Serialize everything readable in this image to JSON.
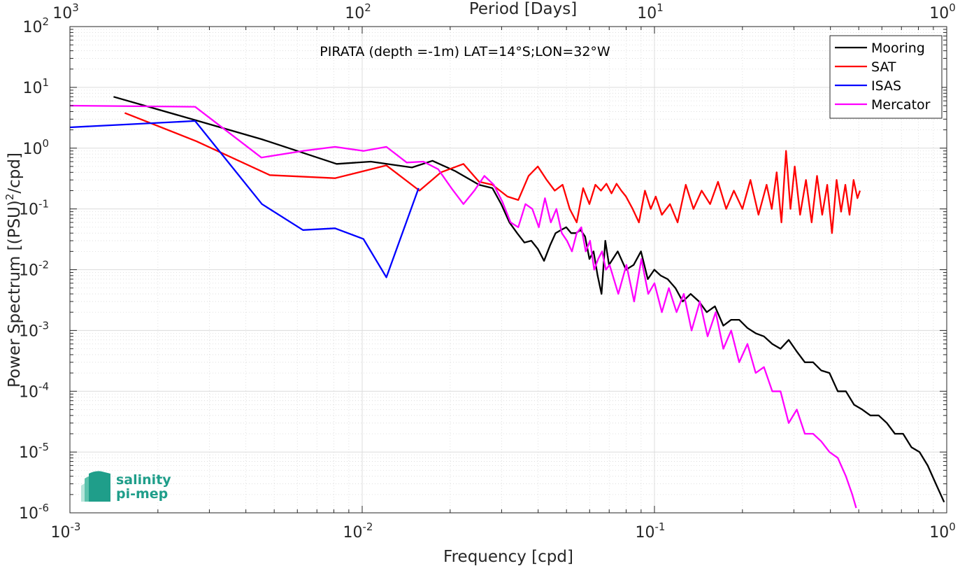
{
  "chart_data": {
    "type": "line",
    "title": "PIRATA (depth =-1m) LAT=14°S;LON=32°W",
    "xlabel": "Frequency [cpd]",
    "ylabel_main": "Power Spectrum [(PSU)",
    "ylabel_sup": "2",
    "ylabel_tail": "/cpd]",
    "x2label": "Period [Days]",
    "xscale": "log",
    "yscale": "log",
    "xlim": [
      0.001,
      1
    ],
    "ylim": [
      1e-06,
      100
    ],
    "grid": true,
    "legend_position": "top-right",
    "x_ticks": [
      {
        "base": "10",
        "exp": "-3"
      },
      {
        "base": "10",
        "exp": "-2"
      },
      {
        "base": "10",
        "exp": "-1"
      },
      {
        "base": "10",
        "exp": "0"
      }
    ],
    "x2_ticks": [
      {
        "base": "10",
        "exp": "3"
      },
      {
        "base": "10",
        "exp": "2"
      },
      {
        "base": "10",
        "exp": "1"
      },
      {
        "base": "10",
        "exp": "0"
      }
    ],
    "y_ticks": [
      {
        "base": "10",
        "exp": "-6"
      },
      {
        "base": "10",
        "exp": "-5"
      },
      {
        "base": "10",
        "exp": "-4"
      },
      {
        "base": "10",
        "exp": "-3"
      },
      {
        "base": "10",
        "exp": "-2"
      },
      {
        "base": "10",
        "exp": "-1"
      },
      {
        "base": "10",
        "exp": "0"
      },
      {
        "base": "10",
        "exp": "1"
      },
      {
        "base": "10",
        "exp": "2"
      }
    ],
    "series": [
      {
        "name": "Mooring",
        "color": "#000000",
        "x": [
          0.00141,
          0.00268,
          0.00454,
          0.00818,
          0.0107,
          0.0148,
          0.0174,
          0.0208,
          0.0251,
          0.0279,
          0.0299,
          0.0319,
          0.0339,
          0.0359,
          0.0379,
          0.0399,
          0.0419,
          0.0439,
          0.0459,
          0.0479,
          0.0499,
          0.0519,
          0.0539,
          0.0559,
          0.0579,
          0.0599,
          0.0619,
          0.0639,
          0.0659,
          0.0679,
          0.0699,
          0.0749,
          0.0799,
          0.0849,
          0.0899,
          0.0949,
          0.0999,
          0.105,
          0.111,
          0.118,
          0.125,
          0.133,
          0.142,
          0.151,
          0.161,
          0.172,
          0.183,
          0.195,
          0.208,
          0.222,
          0.237,
          0.253,
          0.27,
          0.288,
          0.307,
          0.327,
          0.349,
          0.372,
          0.397,
          0.424,
          0.452,
          0.482,
          0.514,
          0.548,
          0.585,
          0.624,
          0.665,
          0.709,
          0.757,
          0.807,
          0.861,
          0.918,
          0.98
        ],
        "values": [
          7,
          2.9,
          1.4,
          0.55,
          0.6,
          0.48,
          0.62,
          0.42,
          0.25,
          0.22,
          0.12,
          0.06,
          0.04,
          0.028,
          0.03,
          0.022,
          0.014,
          0.025,
          0.04,
          0.045,
          0.05,
          0.04,
          0.04,
          0.045,
          0.035,
          0.015,
          0.02,
          0.008,
          0.004,
          0.03,
          0.012,
          0.02,
          0.01,
          0.012,
          0.02,
          0.007,
          0.01,
          0.008,
          0.007,
          0.005,
          0.003,
          0.004,
          0.003,
          0.002,
          0.0025,
          0.0012,
          0.0015,
          0.0015,
          0.0011,
          0.0009,
          0.0008,
          0.0006,
          0.0005,
          0.0007,
          0.00045,
          0.0003,
          0.0003,
          0.00022,
          0.0002,
          0.0001,
          0.0001,
          6e-05,
          5e-05,
          4e-05,
          4e-05,
          3e-05,
          2e-05,
          2e-05,
          1.2e-05,
          1e-05,
          6e-06,
          3e-06,
          1.5e-06
        ]
      },
      {
        "name": "SAT",
        "color": "#ff0000",
        "x": [
          0.00154,
          0.00271,
          0.00483,
          0.00807,
          0.0121,
          0.0157,
          0.0186,
          0.0222,
          0.0251,
          0.0279,
          0.0314,
          0.0342,
          0.0371,
          0.0399,
          0.0428,
          0.0456,
          0.0485,
          0.0513,
          0.0542,
          0.057,
          0.0599,
          0.0628,
          0.0656,
          0.0685,
          0.0713,
          0.0742,
          0.077,
          0.0799,
          0.0842,
          0.0885,
          0.0928,
          0.0971,
          0.101,
          0.106,
          0.113,
          0.12,
          0.128,
          0.136,
          0.145,
          0.155,
          0.165,
          0.176,
          0.187,
          0.2,
          0.213,
          0.227,
          0.242,
          0.252,
          0.262,
          0.272,
          0.282,
          0.292,
          0.302,
          0.315,
          0.33,
          0.345,
          0.36,
          0.375,
          0.39,
          0.405,
          0.42,
          0.435,
          0.45,
          0.465,
          0.48,
          0.495,
          0.505
        ],
        "values": [
          3.8,
          1.3,
          0.36,
          0.32,
          0.52,
          0.2,
          0.4,
          0.55,
          0.28,
          0.25,
          0.16,
          0.14,
          0.35,
          0.5,
          0.3,
          0.2,
          0.25,
          0.1,
          0.06,
          0.22,
          0.12,
          0.25,
          0.2,
          0.26,
          0.18,
          0.26,
          0.2,
          0.16,
          0.1,
          0.06,
          0.2,
          0.1,
          0.16,
          0.08,
          0.12,
          0.06,
          0.25,
          0.1,
          0.2,
          0.12,
          0.28,
          0.1,
          0.2,
          0.1,
          0.3,
          0.08,
          0.25,
          0.1,
          0.4,
          0.06,
          0.9,
          0.1,
          0.5,
          0.08,
          0.3,
          0.06,
          0.35,
          0.08,
          0.25,
          0.04,
          0.3,
          0.09,
          0.25,
          0.08,
          0.3,
          0.15,
          0.2
        ]
      },
      {
        "name": "ISAS",
        "color": "#0000ff",
        "x": [
          0.001,
          0.00268,
          0.00454,
          0.00627,
          0.00807,
          0.0101,
          0.0121,
          0.0156
        ],
        "values": [
          2.2,
          2.8,
          0.12,
          0.045,
          0.048,
          0.032,
          0.0075,
          0.22
        ]
      },
      {
        "name": "Mercator",
        "color": "#ff00ff",
        "x": [
          0.001,
          0.00268,
          0.00452,
          0.00627,
          0.00807,
          0.0101,
          0.0121,
          0.0142,
          0.0162,
          0.0182,
          0.0202,
          0.0222,
          0.0242,
          0.0262,
          0.0282,
          0.0302,
          0.0322,
          0.0342,
          0.0362,
          0.0382,
          0.0402,
          0.0422,
          0.0442,
          0.0462,
          0.0482,
          0.0502,
          0.0522,
          0.0542,
          0.0562,
          0.0582,
          0.0602,
          0.0622,
          0.0642,
          0.0662,
          0.0682,
          0.0702,
          0.0752,
          0.0802,
          0.0852,
          0.0902,
          0.0952,
          0.1,
          0.106,
          0.112,
          0.119,
          0.126,
          0.134,
          0.143,
          0.152,
          0.162,
          0.172,
          0.183,
          0.195,
          0.208,
          0.222,
          0.237,
          0.253,
          0.27,
          0.288,
          0.307,
          0.327,
          0.349,
          0.372,
          0.397,
          0.424,
          0.452,
          0.475,
          0.49
        ],
        "values": [
          5,
          4.8,
          0.7,
          0.9,
          1.05,
          0.9,
          1.05,
          0.58,
          0.6,
          0.45,
          0.22,
          0.12,
          0.2,
          0.35,
          0.25,
          0.13,
          0.06,
          0.05,
          0.12,
          0.1,
          0.05,
          0.15,
          0.06,
          0.1,
          0.04,
          0.03,
          0.02,
          0.04,
          0.05,
          0.02,
          0.03,
          0.01,
          0.015,
          0.02,
          0.01,
          0.012,
          0.004,
          0.012,
          0.003,
          0.015,
          0.004,
          0.006,
          0.002,
          0.005,
          0.002,
          0.004,
          0.001,
          0.003,
          0.0008,
          0.002,
          0.0005,
          0.001,
          0.0003,
          0.0006,
          0.0002,
          0.00025,
          0.0001,
          0.0001,
          3e-05,
          5e-05,
          2e-05,
          2e-05,
          1.5e-05,
          1e-05,
          8e-06,
          4e-06,
          2e-06,
          1.2e-06
        ]
      }
    ]
  },
  "logo": {
    "line1": "salinity",
    "line2": "pi-mep",
    "color": "#1f9e8a"
  }
}
